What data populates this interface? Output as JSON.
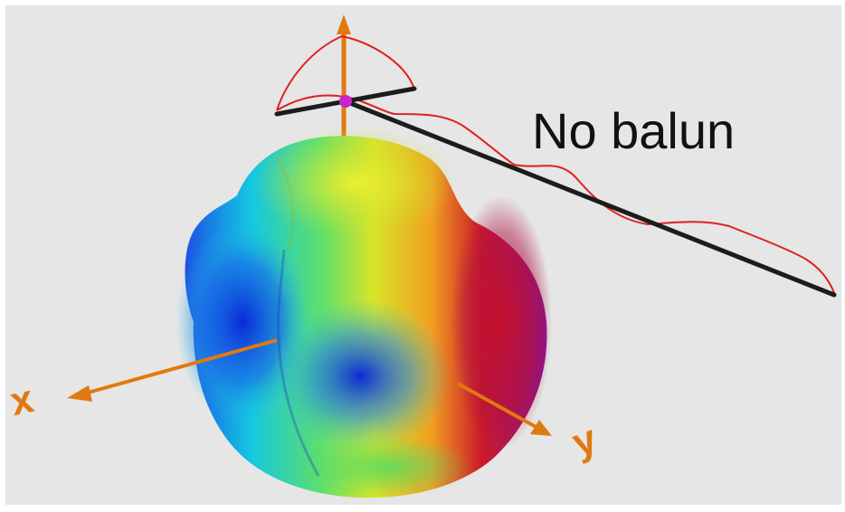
{
  "caption": "No balun",
  "axes": {
    "x_label": "x",
    "y_label": "y"
  },
  "colors": {
    "axis": "#e07a10",
    "antenna_wire": "#1c1c1c",
    "current_trace": "#e02020",
    "feed_point": "#cc22cc",
    "background": "#e6e6e6"
  }
}
